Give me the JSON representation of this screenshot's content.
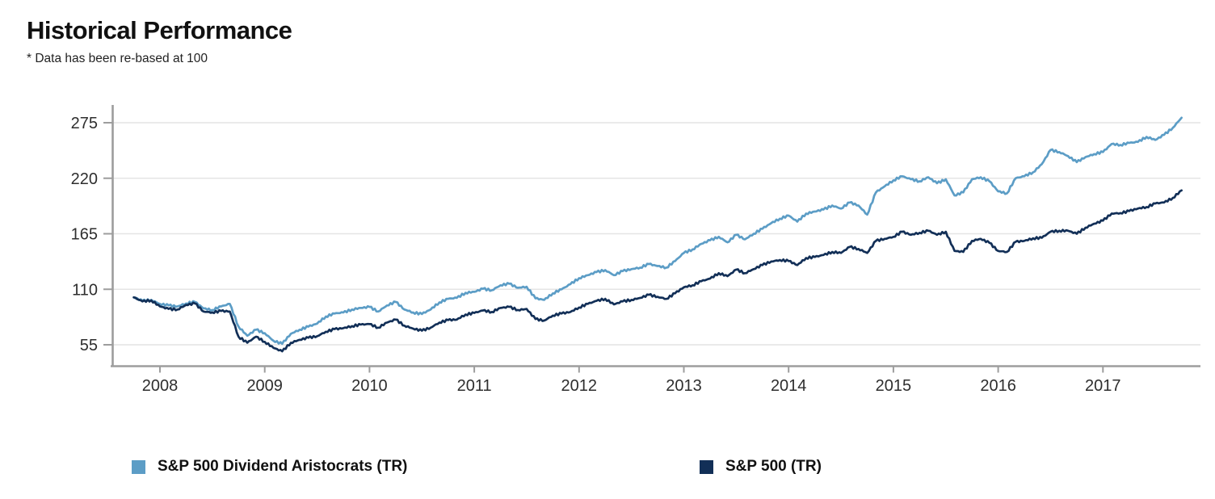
{
  "header": {
    "title": "Historical Performance",
    "subtitle": "* Data has been re-based at 100"
  },
  "colors": {
    "aristocrats_blue": "#5C9DC6",
    "sp500_navy": "#122F57",
    "axis_gray": "#9D9D9D",
    "gridline_gray": "#E4E4E4",
    "tick_text": "#2E2E2E",
    "background": "#FFFFFF"
  },
  "legend": {
    "items": [
      {
        "label": "S&P 500 Dividend Aristocrats (TR)",
        "color": "#5C9DC6"
      },
      {
        "label": "S&P 500 (TR)",
        "color": "#122F57"
      }
    ]
  },
  "chart_data": {
    "type": "line",
    "title": "Historical Performance",
    "note": "* Data has been re-based at 100",
    "grid": "horizontal",
    "legend_position": "bottom",
    "y_axis": {
      "ticks": [
        275,
        220,
        165,
        110,
        55
      ],
      "range": [
        42,
        292
      ],
      "label": ""
    },
    "x_axis": {
      "tick_labels": [
        "2008",
        "2009",
        "2010",
        "2011",
        "2012",
        "2013",
        "2014",
        "2015",
        "2016",
        "2017"
      ],
      "range_decimal_years": [
        2007.7,
        2017.9
      ]
    },
    "start": "2007-10",
    "frequency": "monthly",
    "series": [
      {
        "name": "S&P 500 Dividend Aristocrats (TR)",
        "color": "#5C9DC6",
        "values": [
          102,
          98.5,
          99.5,
          95.5,
          94,
          93,
          96,
          97.5,
          91,
          89.5,
          93,
          95.5,
          73,
          64,
          70,
          66.5,
          59,
          56,
          66,
          70,
          73,
          76,
          83,
          86,
          87,
          90,
          91.5,
          92.5,
          88,
          94,
          97.5,
          90,
          87,
          85.5,
          90,
          97,
          100.5,
          101.5,
          106.5,
          107.5,
          110.5,
          109,
          114,
          115.5,
          111.5,
          112.5,
          101,
          99.5,
          106,
          110,
          115,
          121,
          124,
          127,
          129,
          124,
          128,
          130,
          131.5,
          135,
          133,
          131.5,
          138,
          146,
          149.5,
          155,
          158.5,
          162,
          156.5,
          164,
          159.5,
          165,
          170,
          175.5,
          180,
          183,
          177,
          185,
          187,
          189,
          193,
          190,
          196,
          193,
          184,
          206,
          212,
          218,
          222,
          219,
          217,
          221,
          215,
          219,
          203,
          206,
          219,
          221,
          217,
          207,
          205,
          220,
          222,
          226,
          234,
          248,
          246,
          242,
          236,
          241,
          244,
          246,
          254,
          253,
          255,
          256,
          261,
          258,
          263,
          270,
          280
        ]
      },
      {
        "name": "S&P 500 (TR)",
        "color": "#122F57",
        "values": [
          102,
          98,
          99,
          93,
          90.5,
          90,
          94.5,
          96,
          88,
          87,
          88.5,
          88,
          63,
          57,
          63,
          58,
          52,
          48.5,
          57,
          60,
          62,
          63.5,
          68,
          70.5,
          71.5,
          73.5,
          75,
          75.5,
          72,
          77,
          80,
          74,
          71,
          69,
          72,
          77,
          79.5,
          80,
          85,
          86.5,
          89,
          87.5,
          91.5,
          92.5,
          89.5,
          90.5,
          80.5,
          79,
          84,
          86,
          87.5,
          92,
          95.5,
          98.5,
          100.5,
          95,
          98,
          99.5,
          101.5,
          104.5,
          102.5,
          100.5,
          106,
          112,
          114,
          118,
          120.5,
          126,
          123,
          129.5,
          126,
          130,
          134,
          137.5,
          139,
          138,
          134,
          141,
          142,
          144,
          147,
          146,
          152,
          150,
          146,
          158,
          160,
          162,
          167,
          164,
          166,
          168,
          164,
          167,
          148,
          147,
          158,
          160,
          156,
          148,
          147,
          157,
          158,
          160.5,
          161,
          167,
          168,
          168,
          165,
          171,
          175,
          178,
          185,
          185.5,
          187.5,
          190,
          191.5,
          195,
          196,
          200.5,
          208
        ]
      }
    ]
  }
}
